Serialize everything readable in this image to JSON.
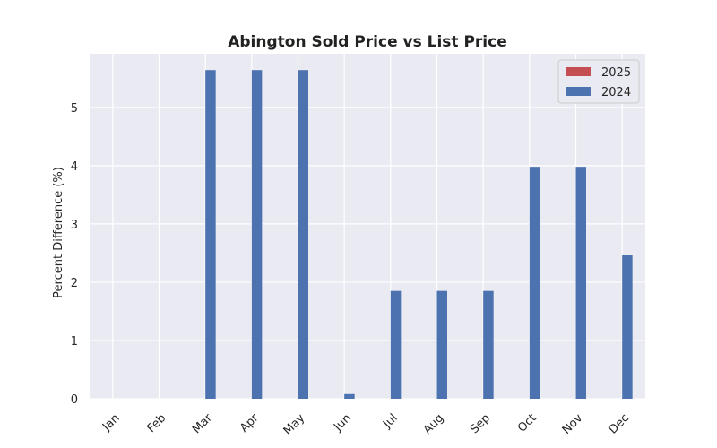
{
  "chart_data": {
    "type": "bar",
    "title": "Abington Sold Price vs List Price",
    "xlabel": "",
    "ylabel": "Percent Difference (%)",
    "categories": [
      "Jan",
      "Feb",
      "Mar",
      "Apr",
      "May",
      "Jun",
      "Jul",
      "Aug",
      "Sep",
      "Oct",
      "Nov",
      "Dec"
    ],
    "series": [
      {
        "name": "2025",
        "color": "#c44e52",
        "values": [
          0,
          0,
          0,
          0,
          0,
          0,
          0,
          0,
          0,
          0,
          0,
          0
        ]
      },
      {
        "name": "2024",
        "color": "#4c72b0",
        "values": [
          0,
          0,
          5.64,
          5.64,
          5.64,
          0.08,
          1.85,
          1.85,
          1.85,
          3.98,
          3.98,
          2.46
        ]
      }
    ],
    "ylim": [
      0,
      5.92
    ],
    "yticks": [
      0,
      1,
      2,
      3,
      4,
      5
    ],
    "grid": true,
    "legend_position": "top-right",
    "background": "#eaeaf2"
  }
}
